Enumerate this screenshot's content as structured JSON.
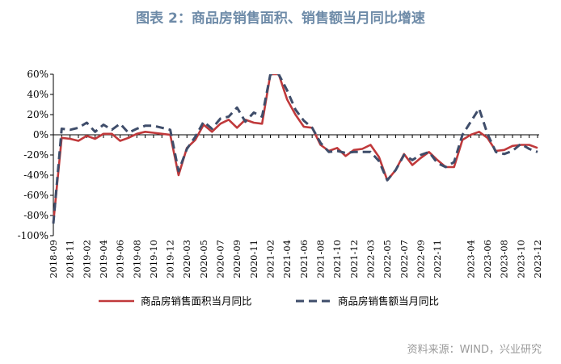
{
  "title": "图表 2：商品房销售面积、销售额当月同比增速",
  "source": "资料来源：WIND，兴业研究",
  "colors": {
    "area": "#C0393B",
    "sales": "#3F4D6A",
    "axis": "#000000",
    "title": "#6E8BA8"
  },
  "chart_data": {
    "type": "line",
    "title": "图表 2：商品房销售面积、销售额当月同比增速",
    "xlabel": "",
    "ylabel": "",
    "ylim": [
      -100,
      60
    ],
    "yticks": [
      "60%",
      "40%",
      "20%",
      "0%",
      "-20%",
      "-40%",
      "-60%",
      "-80%",
      "-100%"
    ],
    "ytick_values": [
      60,
      40,
      20,
      0,
      -20,
      -40,
      -60,
      -80,
      -100
    ],
    "xtick_labels": [
      "2018-09",
      "2018-11",
      "2019-02",
      "2019-04",
      "2019-06",
      "2019-08",
      "2019-10",
      "2019-12",
      "2020-03",
      "2020-05",
      "2020-07",
      "2020-09",
      "2020-11",
      "2021-02",
      "2021-04",
      "2021-06",
      "2021-08",
      "2021-10",
      "2021-12",
      "2022-03",
      "2022-05",
      "2022-07",
      "2022-09",
      "2022-11",
      "2023-04",
      "2023-06",
      "2023-08",
      "2023-10",
      "2023-12"
    ],
    "x": [
      "2018-09",
      "2018-10",
      "2018-11",
      "2018-12",
      "2019-02",
      "2019-03",
      "2019-04",
      "2019-05",
      "2019-06",
      "2019-07",
      "2019-08",
      "2019-09",
      "2019-10",
      "2019-11",
      "2019-12",
      "2020-02",
      "2020-03",
      "2020-04",
      "2020-05",
      "2020-06",
      "2020-07",
      "2020-08",
      "2020-09",
      "2020-10",
      "2020-11",
      "2020-12",
      "2021-02",
      "2021-03",
      "2021-04",
      "2021-05",
      "2021-06",
      "2021-07",
      "2021-08",
      "2021-09",
      "2021-10",
      "2021-11",
      "2021-12",
      "2022-02",
      "2022-03",
      "2022-04",
      "2022-05",
      "2022-06",
      "2022-07",
      "2022-08",
      "2022-09",
      "2022-10",
      "2022-11",
      "2022-12",
      "2023-02",
      "2023-03",
      "2023-04",
      "2023-05",
      "2023-06",
      "2023-07",
      "2023-08",
      "2023-09",
      "2023-10",
      "2023-11",
      "2023-12"
    ],
    "series": [
      {
        "name": "商品房销售面积当月同比",
        "style": "solid",
        "values": [
          -87,
          -3,
          -4,
          -6,
          -1,
          -4,
          1,
          1,
          -6,
          -3,
          1,
          3,
          2,
          1,
          0,
          -40,
          -13,
          -5,
          10,
          3,
          11,
          15,
          7,
          15,
          12,
          11,
          60,
          60,
          35,
          20,
          8,
          7,
          -10,
          -16,
          -13,
          -21,
          -15,
          -14,
          -10,
          -22,
          -45,
          -35,
          -19,
          -30,
          -23,
          -17,
          -25,
          -32,
          -32,
          -5,
          0,
          3,
          -3,
          -16,
          -15,
          -11,
          -10,
          -10,
          -13
        ]
      },
      {
        "name": "商品房销售额当月同比",
        "style": "dashed",
        "values": [
          -88,
          6,
          5,
          7,
          12,
          3,
          10,
          5,
          11,
          2,
          6,
          9,
          9,
          7,
          5,
          -36,
          -14,
          -2,
          13,
          6,
          16,
          18,
          27,
          13,
          22,
          18,
          60,
          60,
          44,
          25,
          14,
          7,
          -8,
          -17,
          -16,
          -18,
          -17,
          -17,
          -17,
          -26,
          -45,
          -35,
          -20,
          -25,
          -20,
          -17,
          -28,
          -32,
          -27,
          0,
          13,
          26,
          1,
          -17,
          -19,
          -16,
          -9,
          -14,
          -17
        ]
      }
    ],
    "legend": "bottom",
    "grid": false
  }
}
